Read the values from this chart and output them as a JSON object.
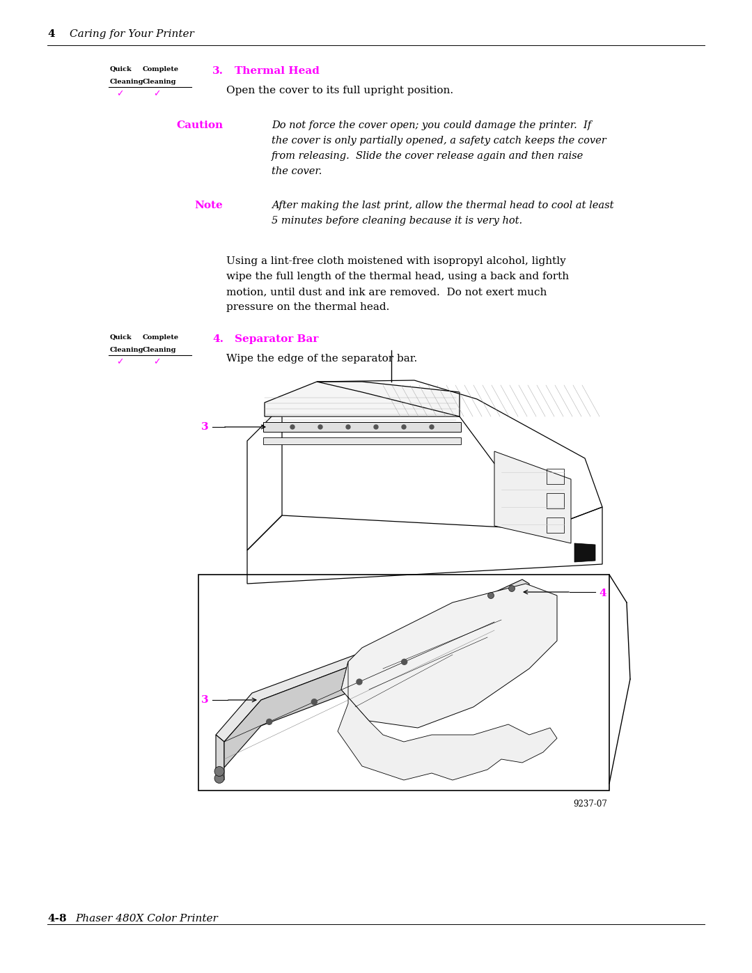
{
  "bg_color": "#ffffff",
  "page_width": 10.8,
  "page_height": 13.97,
  "dpi": 100,
  "header_chapter_num": "4",
  "header_chapter_title": "Caring for Your Printer",
  "footer_page": "4-8",
  "footer_product": "Phaser 480X Color Printer",
  "magenta": "#ff00ff",
  "black": "#000000",
  "section3_num": "3.",
  "section3_title": "Thermal Head",
  "section3_body": "Open the cover to its full upright position.",
  "caution_label": "Caution",
  "caution_line1": "Do not force the cover open; you could damage the printer.  If",
  "caution_line2": "the cover is only partially opened, a safety catch keeps the cover",
  "caution_line3": "from releasing.  Slide the cover release again and then raise",
  "caution_line4": "the cover.",
  "note_label": "Note",
  "note_line1": "After making the last print, allow the thermal head to cool at least",
  "note_line2": "5 minutes before cleaning because it is very hot.",
  "body_line1": "Using a lint-free cloth moistened with isopropyl alcohol, lightly",
  "body_line2": "wipe the full length of the thermal head, using a back and forth",
  "body_line3": "motion, until dust and ink are removed.  Do not exert much",
  "body_line4": "pressure on the thermal head.",
  "section4_num": "4.",
  "section4_title": "Separator Bar",
  "section4_body": "Wipe the edge of the separator bar.",
  "figure_note": "9237-07",
  "quick_label": "Quick",
  "complete_label": "Complete",
  "cleaning_label": "Cleaning"
}
